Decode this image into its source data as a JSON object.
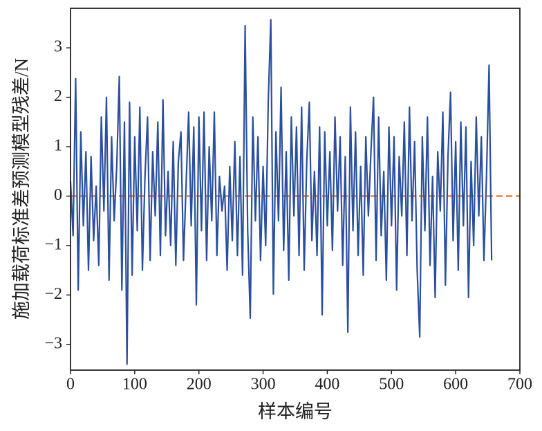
{
  "chart_data": {
    "type": "line",
    "xlabel": "样本编号",
    "ylabel": "施加载荷标准差预测模型残差/N",
    "xlim": [
      0,
      700
    ],
    "ylim": [
      -3.52,
      3.8
    ],
    "xticks": [
      0,
      100,
      200,
      300,
      400,
      500,
      600,
      700
    ],
    "yticks": [
      {
        "value": -3,
        "label": "−3"
      },
      {
        "value": -2,
        "label": "−2"
      },
      {
        "value": -1,
        "label": "−1"
      },
      0,
      1,
      2,
      3
    ],
    "series": [
      {
        "color": "#2a4f9f",
        "dash": false,
        "x": [
          0,
          4,
          8,
          12,
          16,
          20,
          24,
          28,
          32,
          36,
          40,
          44,
          48,
          52,
          56,
          60,
          64,
          68,
          72,
          76,
          80,
          84,
          88,
          92,
          96,
          100,
          104,
          108,
          112,
          116,
          120,
          124,
          128,
          132,
          136,
          140,
          144,
          148,
          152,
          156,
          160,
          164,
          168,
          172,
          176,
          180,
          184,
          188,
          192,
          196,
          200,
          204,
          208,
          212,
          216,
          220,
          224,
          228,
          232,
          236,
          240,
          244,
          248,
          252,
          256,
          260,
          264,
          268,
          272,
          276,
          280,
          284,
          288,
          292,
          296,
          300,
          304,
          308,
          312,
          316,
          320,
          324,
          328,
          332,
          336,
          340,
          344,
          348,
          352,
          356,
          360,
          364,
          368,
          372,
          376,
          380,
          384,
          388,
          392,
          396,
          400,
          404,
          408,
          412,
          416,
          420,
          424,
          428,
          432,
          436,
          440,
          444,
          448,
          452,
          456,
          460,
          464,
          468,
          472,
          476,
          480,
          484,
          488,
          492,
          496,
          500,
          504,
          508,
          512,
          516,
          520,
          524,
          528,
          532,
          536,
          540,
          544,
          548,
          552,
          556,
          560,
          564,
          568,
          572,
          576,
          580,
          584,
          588,
          592,
          596,
          600,
          604,
          608,
          612,
          616,
          620,
          624,
          628,
          632,
          636,
          640,
          644,
          648,
          652,
          656
        ],
        "values": [
          0.3,
          -0.8,
          2.38,
          -1.9,
          1.3,
          -0.6,
          0.9,
          -1.5,
          0.8,
          -0.9,
          0.2,
          -1.4,
          1.6,
          -0.3,
          2.0,
          -1.7,
          1.2,
          -0.5,
          0.6,
          2.42,
          -1.9,
          1.5,
          -3.4,
          1.9,
          -1.6,
          1.2,
          -0.7,
          1.8,
          -1.5,
          0.4,
          1.6,
          -1.3,
          0.9,
          -0.4,
          1.5,
          -1.2,
          1.95,
          -0.8,
          0.5,
          -1.0,
          1.1,
          -1.4,
          0.7,
          1.3,
          -1.3,
          0.2,
          1.7,
          -0.6,
          1.4,
          -2.2,
          1.6,
          -0.7,
          1.7,
          -1.3,
          1.0,
          -0.5,
          1.7,
          -1.2,
          0.4,
          -0.3,
          0.2,
          -1.5,
          0.6,
          -0.9,
          1.1,
          -1.2,
          0.8,
          -1.6,
          3.45,
          -0.7,
          -2.47,
          1.6,
          -0.5,
          1.2,
          -1.3,
          0.6,
          -1.0,
          1.9,
          3.57,
          -1.98,
          1.3,
          -0.5,
          2.2,
          -1.1,
          0.9,
          -1.7,
          1.6,
          -0.4,
          1.4,
          -1.2,
          1.8,
          -1.5,
          0.7,
          1.9,
          -0.9,
          0.5,
          -1.2,
          1.4,
          -2.4,
          1.3,
          -0.6,
          0.9,
          -1.1,
          1.6,
          -0.3,
          1.2,
          -1.4,
          0.8,
          -2.75,
          1.8,
          -0.7,
          1.3,
          -1.2,
          0.6,
          -1.6,
          1.2,
          -0.4,
          0.9,
          2.0,
          -1.3,
          1.6,
          -0.8,
          0.5,
          -1.7,
          1.4,
          -0.6,
          1.2,
          -1.9,
          0.8,
          -0.4,
          1.5,
          -1.2,
          1.8,
          -0.5,
          1.1,
          -1.5,
          -2.85,
          1.2,
          -0.7,
          1.6,
          -1.4,
          0.4,
          -2.05,
          0.9,
          -0.3,
          1.7,
          -1.8,
          0.8,
          2.1,
          -0.9,
          1.1,
          -1.5,
          1.5,
          -0.6,
          1.4,
          -2.05,
          0.7,
          -1.0,
          1.6,
          -0.4,
          1.2,
          -1.3,
          0.4,
          2.65,
          -1.3
        ]
      },
      {
        "color": "#e8823a",
        "dash": true,
        "x": [
          0,
          700
        ],
        "values": [
          0,
          0
        ]
      }
    ]
  }
}
